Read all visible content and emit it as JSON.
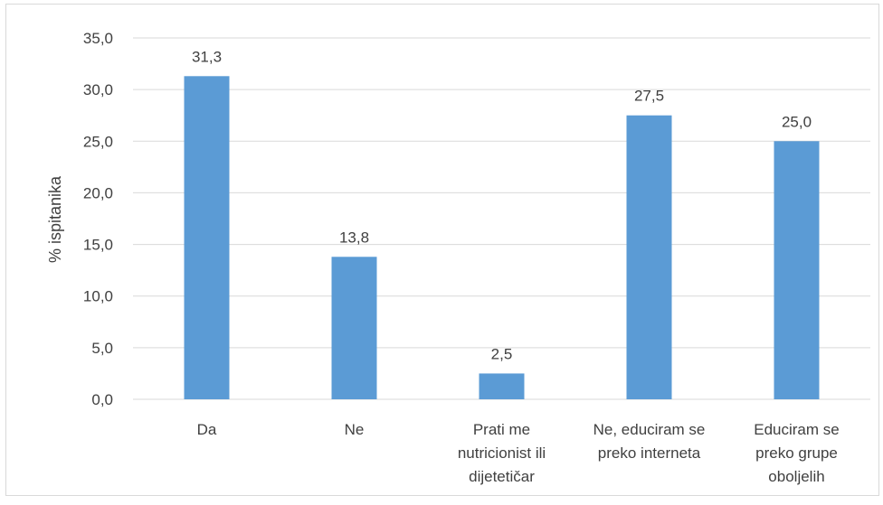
{
  "chart_data": {
    "type": "bar",
    "title": "",
    "xlabel": "",
    "ylabel": "% ispitanika",
    "ylim": [
      0,
      35
    ],
    "yticks": [
      "0,0",
      "5,0",
      "10,0",
      "15,0",
      "20,0",
      "25,0",
      "30,0",
      "35,0"
    ],
    "categories": [
      [
        "Da"
      ],
      [
        "Ne"
      ],
      [
        "Prati me",
        "nutricionist ili",
        "dijetetičar"
      ],
      [
        "Ne, educiram se",
        "preko interneta"
      ],
      [
        "Educiram se",
        "preko grupe",
        "oboljelih"
      ]
    ],
    "values": [
      31.3,
      13.8,
      2.5,
      27.5,
      25.0
    ],
    "data_labels": [
      "31,3",
      "13,8",
      "2,5",
      "27,5",
      "25,0"
    ],
    "grid": true,
    "bar_color": "#5b9bd5",
    "grid_color": "#d9d9d9"
  }
}
